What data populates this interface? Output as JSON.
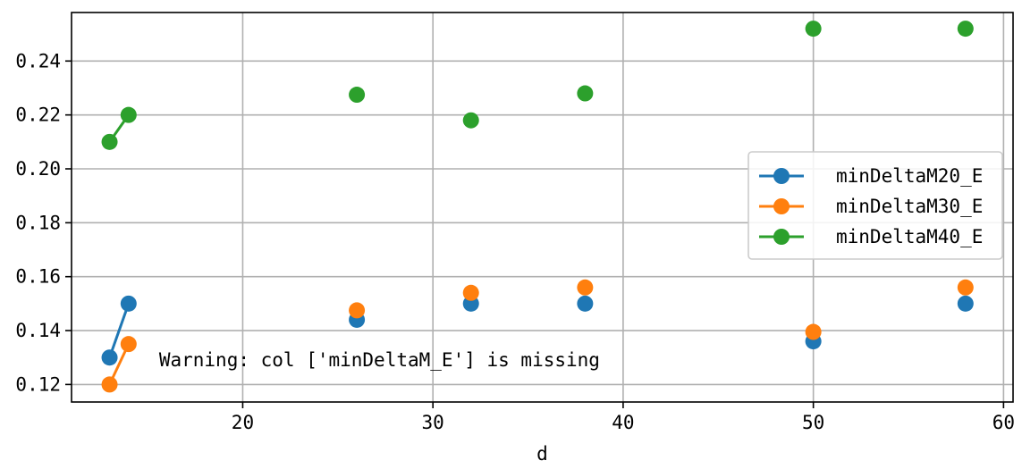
{
  "chart_data": {
    "type": "line",
    "title": "",
    "xlabel": "d",
    "ylabel": "",
    "xlim": [
      11,
      60.5
    ],
    "ylim": [
      0.1135,
      0.258
    ],
    "x_ticks": [
      20,
      30,
      40,
      50,
      60
    ],
    "y_ticks": [
      0.12,
      0.14,
      0.16,
      0.18,
      0.2,
      0.22,
      0.24
    ],
    "x_tick_labels": [
      "20",
      "30",
      "40",
      "50",
      "60"
    ],
    "y_tick_labels": [
      "0.12",
      "0.14",
      "0.16",
      "0.18",
      "0.20",
      "0.22",
      "0.24"
    ],
    "grid": true,
    "legend_position": "center-right",
    "series": [
      {
        "name": "minDeltaM20_E",
        "color": "#1f77b4",
        "points": [
          [
            13,
            0.13
          ],
          [
            14,
            0.15
          ],
          [
            26,
            0.144
          ],
          [
            32,
            0.15
          ],
          [
            38,
            0.15
          ],
          [
            50,
            0.136
          ],
          [
            58,
            0.15
          ]
        ],
        "line_segments": [
          [
            0,
            1
          ]
        ]
      },
      {
        "name": "minDeltaM30_E",
        "color": "#ff7f0e",
        "points": [
          [
            13,
            0.12
          ],
          [
            14,
            0.135
          ],
          [
            26,
            0.1475
          ],
          [
            32,
            0.154
          ],
          [
            38,
            0.156
          ],
          [
            50,
            0.1395
          ],
          [
            58,
            0.156
          ]
        ],
        "line_segments": [
          [
            0,
            1
          ]
        ]
      },
      {
        "name": "minDeltaM40_E",
        "color": "#2ca02c",
        "points": [
          [
            13,
            0.21
          ],
          [
            14,
            0.22
          ],
          [
            26,
            0.2275
          ],
          [
            32,
            0.218
          ],
          [
            38,
            0.228
          ],
          [
            50,
            0.252
          ],
          [
            58,
            0.252
          ]
        ],
        "line_segments": [
          [
            0,
            1
          ]
        ]
      }
    ],
    "annotation": {
      "text": "Warning: col ['minDeltaM_E'] is missing",
      "x": 15.6,
      "y": 0.129
    }
  }
}
